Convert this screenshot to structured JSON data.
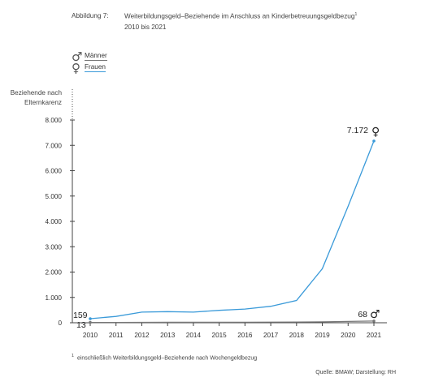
{
  "figure": {
    "label": "Abbildung 7:",
    "title_line1": "Weiterbildungsgeld–Beziehende im Anschluss an Kinderbetreuungsgeldbezug",
    "title_footnote_mark": "1",
    "title_line2": "2010 bis 2021"
  },
  "legend": {
    "male": {
      "symbol": "♂",
      "label": "Männer",
      "color": "#777777"
    },
    "female": {
      "symbol": "♀",
      "label": "Frauen",
      "color": "#3a9ad9"
    }
  },
  "footnote": {
    "mark": "1",
    "text": "einschließlich Weiterbildungsgeld–Beziehende nach Wochengeldbezug"
  },
  "source": "Quelle: BMAW; Darstellung: RH",
  "chart_data": {
    "type": "line",
    "ylabel_lines": [
      "Beziehende nach",
      "Elternkarenz"
    ],
    "xlabel": "",
    "categories": [
      "2010",
      "2011",
      "2012",
      "2013",
      "2014",
      "2015",
      "2016",
      "2017",
      "2018",
      "2019",
      "2020",
      "2021"
    ],
    "ylim": [
      0,
      8000
    ],
    "yticks": [
      0,
      1000,
      2000,
      3000,
      4000,
      5000,
      6000,
      7000,
      8000
    ],
    "ytick_labels": [
      "0",
      "1.000",
      "2.000",
      "3.000",
      "4.000",
      "5.000",
      "6.000",
      "7.000",
      "8.000"
    ],
    "grid": false,
    "legend_position": "top-left",
    "series": [
      {
        "name": "Frauen",
        "symbol": "♀",
        "color": "#3a9ad9",
        "values": [
          159,
          250,
          420,
          440,
          420,
          490,
          540,
          650,
          880,
          2130,
          4600,
          7172
        ],
        "annotations": [
          {
            "index": 0,
            "text": "159"
          },
          {
            "index": 11,
            "text": "7.172"
          }
        ]
      },
      {
        "name": "Männer",
        "symbol": "♂",
        "color": "#777777",
        "values": [
          13,
          14,
          16,
          18,
          18,
          20,
          22,
          25,
          30,
          35,
          50,
          68
        ],
        "annotations": [
          {
            "index": 0,
            "text": "13"
          },
          {
            "index": 11,
            "text": "68"
          }
        ]
      }
    ]
  }
}
